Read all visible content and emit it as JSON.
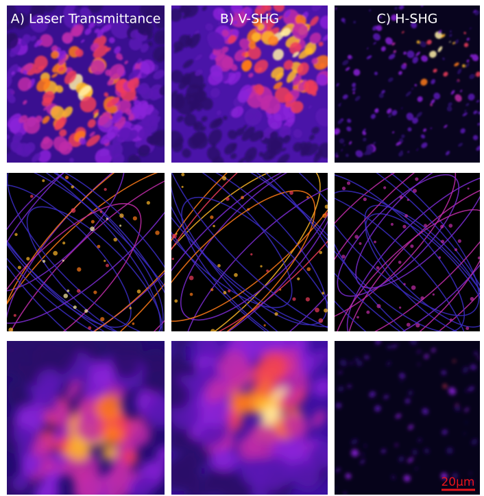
{
  "panels": {
    "columns": [
      "A) Laser Transmittance",
      "B) V-SHG",
      "C) H-SHG"
    ]
  },
  "scale_bar": {
    "label": "20μm"
  }
}
